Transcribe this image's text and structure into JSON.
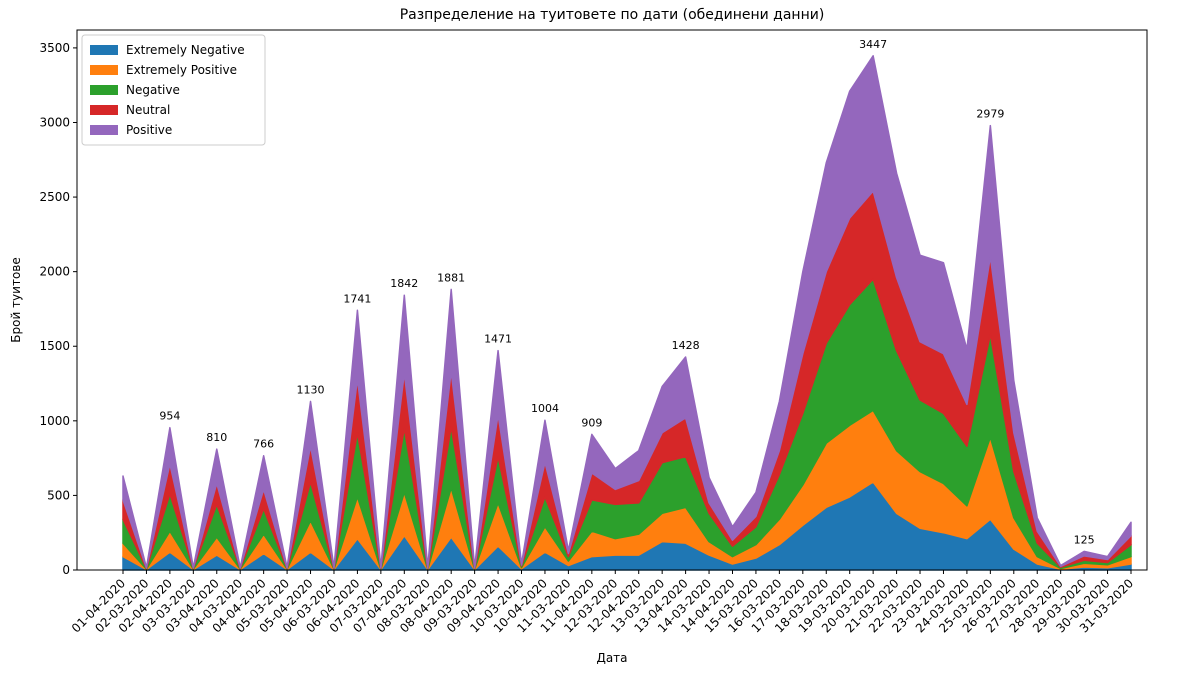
{
  "chart_data": {
    "type": "stacked_area",
    "title": "Разпределение на туитовете по дати (обединени данни)",
    "xlabel": "Дата",
    "ylabel": "Брой туитове",
    "categories": [
      "01-04-2020",
      "02-03-2020",
      "02-04-2020",
      "03-03-2020",
      "03-04-2020",
      "04-03-2020",
      "04-04-2020",
      "05-03-2020",
      "05-04-2020",
      "06-03-2020",
      "06-04-2020",
      "07-03-2020",
      "07-04-2020",
      "08-03-2020",
      "08-04-2020",
      "09-03-2020",
      "09-04-2020",
      "10-03-2020",
      "10-04-2020",
      "11-03-2020",
      "11-04-2020",
      "12-03-2020",
      "12-04-2020",
      "13-03-2020",
      "13-04-2020",
      "14-03-2020",
      "14-04-2020",
      "15-03-2020",
      "16-03-2020",
      "17-03-2020",
      "18-03-2020",
      "19-03-2020",
      "20-03-2020",
      "21-03-2020",
      "22-03-2020",
      "23-03-2020",
      "24-03-2020",
      "25-03-2020",
      "26-03-2020",
      "27-03-2020",
      "28-03-2020",
      "29-03-2020",
      "30-03-2020",
      "31-03-2020"
    ],
    "series": [
      {
        "name": "Extremely Negative",
        "color": "#1f77b4",
        "values": [
          90,
          3,
          120,
          3,
          100,
          3,
          110,
          3,
          120,
          3,
          210,
          3,
          230,
          3,
          220,
          3,
          160,
          8,
          120,
          30,
          90,
          100,
          100,
          190,
          180,
          100,
          40,
          80,
          170,
          300,
          420,
          490,
          590,
          380,
          280,
          250,
          210,
          340,
          140,
          40,
          5,
          20,
          15,
          40
        ]
      },
      {
        "name": "Extremely Positive",
        "color": "#ff7f0e",
        "values": [
          90,
          3,
          140,
          3,
          120,
          3,
          130,
          3,
          210,
          3,
          280,
          3,
          290,
          3,
          330,
          3,
          290,
          8,
          170,
          30,
          170,
          110,
          140,
          190,
          240,
          90,
          50,
          90,
          170,
          270,
          430,
          480,
          480,
          420,
          380,
          330,
          220,
          550,
          210,
          50,
          5,
          25,
          20,
          50
        ]
      },
      {
        "name": "Negative",
        "color": "#2ca02c",
        "values": [
          160,
          4,
          250,
          4,
          220,
          4,
          170,
          4,
          260,
          4,
          430,
          4,
          430,
          4,
          410,
          4,
          310,
          10,
          200,
          30,
          210,
          230,
          210,
          340,
          340,
          190,
          70,
          120,
          300,
          480,
          670,
          810,
          880,
          670,
          480,
          470,
          400,
          690,
          310,
          90,
          8,
          20,
          15,
          80
        ]
      },
      {
        "name": "Neutral",
        "color": "#d62728",
        "values": [
          130,
          3,
          200,
          3,
          140,
          3,
          130,
          3,
          240,
          3,
          360,
          3,
          370,
          3,
          370,
          3,
          280,
          7,
          230,
          20,
          180,
          100,
          150,
          200,
          260,
          70,
          40,
          70,
          160,
          400,
          480,
          580,
          590,
          490,
          390,
          400,
          280,
          520,
          260,
          80,
          6,
          30,
          20,
          60
        ]
      },
      {
        "name": "Positive",
        "color": "#9467bd",
        "values": [
          160,
          3,
          244,
          3,
          230,
          3,
          226,
          3,
          300,
          3,
          461,
          3,
          522,
          3,
          551,
          3,
          431,
          7,
          284,
          20,
          259,
          140,
          200,
          310,
          408,
          170,
          90,
          160,
          330,
          550,
          730,
          850,
          907,
          700,
          580,
          610,
          370,
          879,
          350,
          90,
          6,
          30,
          20,
          90
        ]
      }
    ],
    "annotations": [
      {
        "category": "02-04-2020",
        "value": 954
      },
      {
        "category": "03-04-2020",
        "value": 810
      },
      {
        "category": "04-04-2020",
        "value": 766
      },
      {
        "category": "05-04-2020",
        "value": 1130
      },
      {
        "category": "06-04-2020",
        "value": 1741
      },
      {
        "category": "07-04-2020",
        "value": 1842
      },
      {
        "category": "08-04-2020",
        "value": 1881
      },
      {
        "category": "09-04-2020",
        "value": 1471
      },
      {
        "category": "10-04-2020",
        "value": 1004
      },
      {
        "category": "11-04-2020",
        "value": 909
      },
      {
        "category": "13-04-2020",
        "value": 1428
      },
      {
        "category": "20-03-2020",
        "value": 3447
      },
      {
        "category": "25-03-2020",
        "value": 2979
      },
      {
        "category": "29-03-2020",
        "value": 125
      }
    ],
    "ylim": [
      0,
      3620
    ],
    "yticks": [
      0,
      500,
      1000,
      1500,
      2000,
      2500,
      3000,
      3500
    ],
    "grid": false,
    "legend": "upper left"
  }
}
